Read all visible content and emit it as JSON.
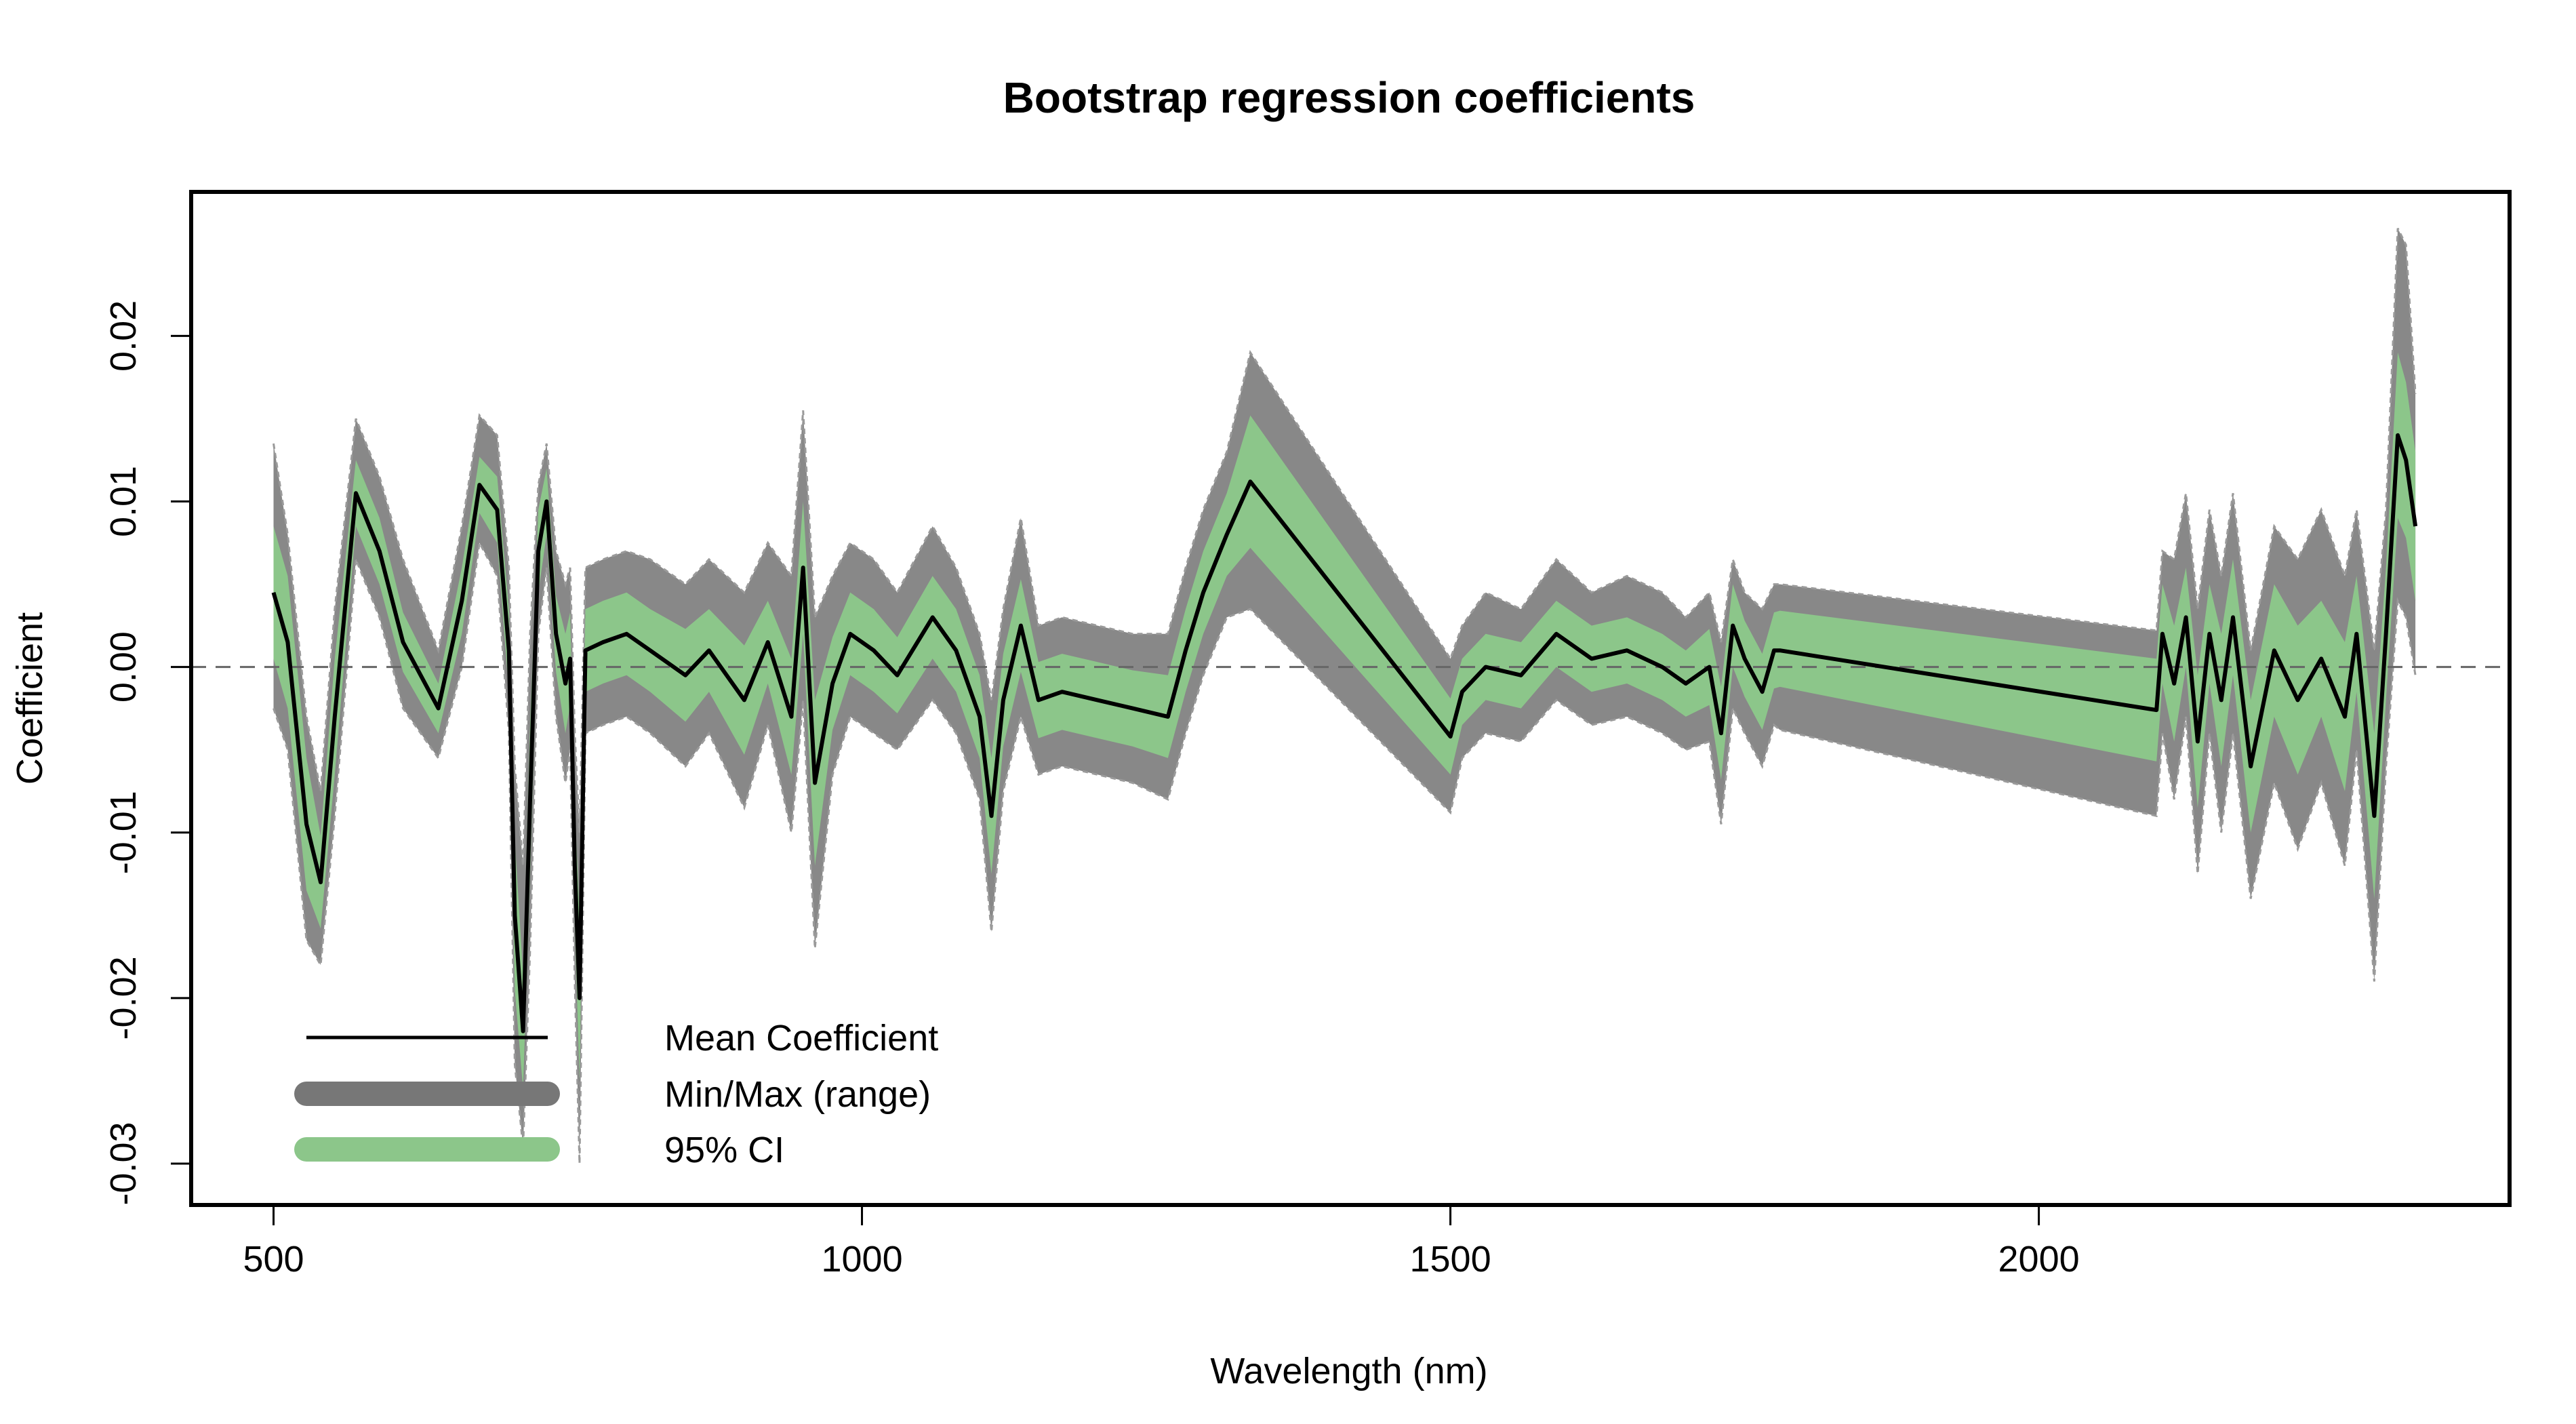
{
  "chart_data": {
    "type": "line",
    "title": "Bootstrap regression coefficients",
    "xlabel": "Wavelength (nm)",
    "ylabel": "Coefficient",
    "xlim": [
      430,
      2400
    ],
    "ylim": [
      -0.0325,
      0.0287
    ],
    "x_ticks": [
      500,
      1000,
      1500,
      2000
    ],
    "y_ticks": [
      -0.03,
      -0.02,
      -0.01,
      0.0,
      0.01,
      0.02
    ],
    "y_tick_labels": [
      "-0.03",
      "-0.02",
      "-0.01",
      "0.00",
      "0.01",
      "0.02"
    ],
    "reference_line": {
      "y": 0,
      "style": "dashed"
    },
    "legend_position": "bottom-left",
    "grid": false,
    "colors": {
      "mean": "#000000",
      "range": "#888888",
      "ci": "#8cc68a",
      "range_edge": "#9a9a9a"
    },
    "series": [
      {
        "name": "Mean Coefficient",
        "x": [
          500,
          512,
          528,
          540,
          552,
          570,
          590,
          610,
          640,
          660,
          675,
          690,
          700,
          705,
          712,
          718,
          725,
          732,
          740,
          748,
          752,
          756,
          760,
          765,
          780,
          800,
          820,
          850,
          870,
          900,
          920,
          940,
          950,
          960,
          975,
          990,
          1010,
          1030,
          1060,
          1080,
          1100,
          1110,
          1120,
          1135,
          1150,
          1170,
          1200,
          1230,
          1260,
          1275,
          1290,
          1310,
          1330,
          1500,
          1510,
          1530,
          1560,
          1590,
          1620,
          1650,
          1680,
          1700,
          1720,
          1730,
          1740,
          1750,
          1765,
          1775,
          1780,
          2100,
          2105,
          2115,
          2125,
          2135,
          2145,
          2155,
          2165,
          2180,
          2200,
          2220,
          2240,
          2260,
          2270,
          2285,
          2295,
          2305,
          2312,
          2320
        ],
        "y": [
          0.0045,
          0.0015,
          -0.0095,
          -0.013,
          -0.003,
          0.0105,
          0.007,
          0.0015,
          -0.0025,
          0.004,
          0.011,
          0.0095,
          0.001,
          -0.015,
          -0.022,
          -0.008,
          0.007,
          0.01,
          0.002,
          -0.001,
          0.0005,
          -0.012,
          -0.02,
          0.001,
          0.0015,
          0.002,
          0.001,
          -0.0005,
          0.001,
          -0.002,
          0.0015,
          -0.003,
          0.006,
          -0.007,
          -0.001,
          0.002,
          0.001,
          -0.0005,
          0.003,
          0.001,
          -0.003,
          -0.009,
          -0.002,
          0.0025,
          -0.002,
          -0.0015,
          -0.002,
          -0.0025,
          -0.003,
          0.001,
          0.0045,
          0.008,
          0.0112,
          -0.0042,
          -0.0015,
          0.0,
          -0.0005,
          0.002,
          0.0005,
          0.001,
          0.0,
          -0.001,
          0.0,
          -0.004,
          0.0025,
          0.0005,
          -0.0015,
          0.001,
          0.001,
          -0.0026,
          0.002,
          -0.001,
          0.003,
          -0.0045,
          0.002,
          -0.002,
          0.003,
          -0.006,
          0.001,
          -0.002,
          0.0005,
          -0.003,
          0.002,
          -0.009,
          0.002,
          0.014,
          0.0125,
          0.0085
        ]
      },
      {
        "name": "Min/Max (range)",
        "x": [
          500,
          512,
          528,
          540,
          552,
          570,
          590,
          610,
          640,
          660,
          675,
          690,
          700,
          705,
          712,
          718,
          725,
          732,
          740,
          748,
          752,
          756,
          760,
          765,
          780,
          800,
          820,
          850,
          870,
          900,
          920,
          940,
          950,
          960,
          975,
          990,
          1010,
          1030,
          1060,
          1080,
          1100,
          1110,
          1120,
          1135,
          1150,
          1170,
          1200,
          1230,
          1260,
          1275,
          1290,
          1310,
          1330,
          1500,
          1510,
          1530,
          1560,
          1590,
          1620,
          1650,
          1680,
          1700,
          1720,
          1730,
          1740,
          1750,
          1765,
          1775,
          1780,
          2100,
          2105,
          2115,
          2125,
          2135,
          2145,
          2155,
          2165,
          2180,
          2200,
          2220,
          2240,
          2260,
          2270,
          2285,
          2295,
          2305,
          2312,
          2320
        ],
        "lower": [
          -0.0025,
          -0.005,
          -0.0165,
          -0.018,
          -0.009,
          0.0065,
          0.003,
          -0.0025,
          -0.0055,
          0.0,
          0.0075,
          0.0055,
          -0.004,
          -0.024,
          -0.029,
          -0.017,
          0.002,
          0.006,
          -0.003,
          -0.007,
          -0.005,
          -0.019,
          -0.03,
          -0.004,
          -0.0035,
          -0.003,
          -0.004,
          -0.006,
          -0.004,
          -0.0085,
          -0.0035,
          -0.01,
          -0.002,
          -0.017,
          -0.0065,
          -0.003,
          -0.004,
          -0.005,
          -0.002,
          -0.004,
          -0.008,
          -0.016,
          -0.0075,
          -0.003,
          -0.0065,
          -0.006,
          -0.0065,
          -0.007,
          -0.008,
          -0.004,
          -0.0005,
          0.003,
          0.0035,
          -0.0088,
          -0.0055,
          -0.004,
          -0.0045,
          -0.002,
          -0.0035,
          -0.003,
          -0.004,
          -0.005,
          -0.0045,
          -0.0095,
          -0.0025,
          -0.004,
          -0.006,
          -0.0035,
          -0.0038,
          -0.009,
          -0.004,
          -0.008,
          -0.003,
          -0.0125,
          -0.004,
          -0.01,
          -0.004,
          -0.014,
          -0.007,
          -0.011,
          -0.007,
          -0.012,
          -0.005,
          -0.019,
          -0.006,
          0.004,
          0.003,
          -0.0005
        ],
        "upper": [
          0.0135,
          0.008,
          -0.003,
          -0.0075,
          0.0035,
          0.015,
          0.0115,
          0.0065,
          0.001,
          0.0085,
          0.0152,
          0.014,
          0.006,
          -0.006,
          -0.012,
          0.002,
          0.011,
          0.0135,
          0.007,
          0.005,
          0.006,
          -0.004,
          -0.01,
          0.006,
          0.0065,
          0.007,
          0.0065,
          0.005,
          0.0065,
          0.0045,
          0.0075,
          0.0055,
          0.0155,
          0.003,
          0.0055,
          0.0075,
          0.0065,
          0.0045,
          0.0085,
          0.006,
          0.002,
          -0.002,
          0.0035,
          0.009,
          0.0025,
          0.003,
          0.0025,
          0.002,
          0.002,
          0.006,
          0.0095,
          0.013,
          0.019,
          0.0005,
          0.0025,
          0.0045,
          0.0035,
          0.0065,
          0.0045,
          0.0055,
          0.0045,
          0.003,
          0.0045,
          0.0015,
          0.0065,
          0.0045,
          0.0035,
          0.005,
          0.005,
          0.0022,
          0.007,
          0.0065,
          0.0105,
          0.0035,
          0.0095,
          0.0055,
          0.0105,
          0.001,
          0.0085,
          0.0065,
          0.0095,
          0.0055,
          0.0095,
          0.001,
          0.0095,
          0.0265,
          0.0255,
          0.0165
        ]
      },
      {
        "name": "95% CI",
        "x": [
          500,
          512,
          528,
          540,
          552,
          570,
          590,
          610,
          640,
          660,
          675,
          690,
          700,
          705,
          712,
          718,
          725,
          732,
          740,
          748,
          752,
          756,
          760,
          765,
          780,
          800,
          820,
          850,
          870,
          900,
          920,
          940,
          950,
          960,
          975,
          990,
          1010,
          1030,
          1060,
          1080,
          1100,
          1110,
          1120,
          1135,
          1150,
          1170,
          1200,
          1230,
          1260,
          1275,
          1290,
          1310,
          1330,
          1500,
          1510,
          1530,
          1560,
          1590,
          1620,
          1650,
          1680,
          1700,
          1720,
          1730,
          1740,
          1750,
          1765,
          1775,
          1780,
          2100,
          2105,
          2115,
          2125,
          2135,
          2145,
          2155,
          2165,
          2180,
          2200,
          2220,
          2240,
          2260,
          2270,
          2285,
          2295,
          2305,
          2312,
          2320
        ],
        "lower": [
          0.0005,
          -0.0025,
          -0.0135,
          -0.0158,
          -0.0065,
          0.0085,
          0.005,
          -0.0003,
          -0.004,
          0.002,
          0.0093,
          0.0075,
          -0.0015,
          -0.0195,
          -0.0255,
          -0.0125,
          0.0045,
          0.008,
          -0.0003,
          -0.004,
          -0.0023,
          -0.0155,
          -0.025,
          -0.0015,
          -0.001,
          -0.0005,
          -0.0015,
          -0.0033,
          -0.0015,
          -0.0053,
          -0.001,
          -0.0065,
          0.002,
          -0.012,
          -0.0038,
          -0.0005,
          -0.0015,
          -0.0028,
          0.0005,
          -0.0015,
          -0.0055,
          -0.0125,
          -0.0048,
          -0.0003,
          -0.0043,
          -0.0038,
          -0.0043,
          -0.0048,
          -0.0055,
          -0.0015,
          0.002,
          0.0055,
          0.0072,
          -0.0065,
          -0.0035,
          -0.002,
          -0.0025,
          0.0,
          -0.0015,
          -0.001,
          -0.002,
          -0.003,
          -0.0023,
          -0.0068,
          0.0,
          -0.0018,
          -0.0038,
          -0.0013,
          -0.0012,
          -0.0057,
          -0.001,
          -0.0045,
          0.0,
          -0.0085,
          -0.001,
          -0.006,
          -0.0005,
          -0.01,
          -0.003,
          -0.0065,
          -0.003,
          -0.0075,
          -0.0015,
          -0.014,
          -0.002,
          0.009,
          0.0078,
          0.004
        ],
        "upper": [
          0.0085,
          0.0055,
          -0.0055,
          -0.0102,
          0.0005,
          0.0125,
          0.009,
          0.0033,
          -0.001,
          0.006,
          0.0127,
          0.0115,
          0.0035,
          -0.0105,
          -0.0185,
          -0.0035,
          0.0095,
          0.012,
          0.0043,
          0.002,
          0.0033,
          -0.0085,
          -0.015,
          0.0035,
          0.004,
          0.0045,
          0.0035,
          0.0023,
          0.0035,
          0.0013,
          0.004,
          0.0005,
          0.01,
          -0.002,
          0.0018,
          0.0045,
          0.0035,
          0.0018,
          0.0055,
          0.0035,
          -0.0005,
          -0.0055,
          0.0008,
          0.0053,
          0.0003,
          0.0008,
          0.0003,
          -0.0002,
          -0.0005,
          0.0035,
          0.007,
          0.0105,
          0.0152,
          -0.0019,
          0.0005,
          0.002,
          0.0015,
          0.004,
          0.0025,
          0.003,
          0.002,
          0.001,
          0.0023,
          -0.0012,
          0.005,
          0.0028,
          0.0008,
          0.0033,
          0.0034,
          0.0005,
          0.005,
          0.0025,
          0.006,
          -0.0005,
          0.005,
          0.002,
          0.0065,
          -0.002,
          0.005,
          0.0025,
          0.004,
          0.0015,
          0.0055,
          -0.004,
          0.006,
          0.019,
          0.0172,
          0.013
        ]
      }
    ],
    "legend": [
      {
        "label": "Mean Coefficient",
        "style": "line"
      },
      {
        "label": "Min/Max (range)",
        "style": "thick"
      },
      {
        "label": "95% CI",
        "style": "thick"
      }
    ]
  }
}
